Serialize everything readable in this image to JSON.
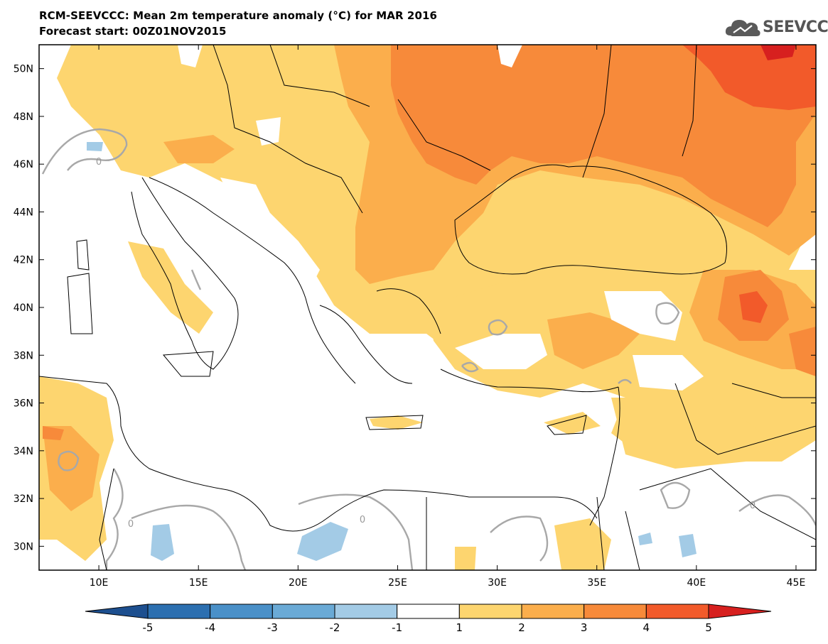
{
  "title_line1": "RCM-SEEVCCC: Mean 2m temperature anomaly (°C) for MAR 2016",
  "title_line2": "Forecast start: 00Z01NOV2015",
  "logo_text": "SEEVCCC",
  "map": {
    "lon_range": [
      7,
      46
    ],
    "lat_range": [
      29,
      51
    ],
    "lat_ticks": [
      {
        "value": 50,
        "label": "50N"
      },
      {
        "value": 48,
        "label": "48N"
      },
      {
        "value": 46,
        "label": "46N"
      },
      {
        "value": 44,
        "label": "44N"
      },
      {
        "value": 42,
        "label": "42N"
      },
      {
        "value": 40,
        "label": "40N"
      },
      {
        "value": 38,
        "label": "38N"
      },
      {
        "value": 36,
        "label": "36N"
      },
      {
        "value": 34,
        "label": "34N"
      },
      {
        "value": 32,
        "label": "32N"
      },
      {
        "value": 30,
        "label": "30N"
      }
    ],
    "lon_ticks": [
      {
        "value": 10,
        "label": "10E"
      },
      {
        "value": 15,
        "label": "15E"
      },
      {
        "value": 20,
        "label": "20E"
      },
      {
        "value": 25,
        "label": "25E"
      },
      {
        "value": 30,
        "label": "30E"
      },
      {
        "value": 35,
        "label": "35E"
      },
      {
        "value": 40,
        "label": "40E"
      },
      {
        "value": 45,
        "label": "45E"
      }
    ],
    "zero_contour_labels": [
      "0",
      "0",
      "0",
      "0"
    ]
  },
  "colorbar": {
    "levels": [
      "-5",
      "-4",
      "-3",
      "-2",
      "-1",
      "1",
      "2",
      "3",
      "4",
      "5"
    ],
    "colors": [
      "#1d4f8f",
      "#2c6fb0",
      "#4a90c8",
      "#6aaad6",
      "#a3cbe6",
      "#ffffff",
      "#fdd56f",
      "#fbae4c",
      "#f78a3a",
      "#f25a2a",
      "#d7201f"
    ]
  }
}
